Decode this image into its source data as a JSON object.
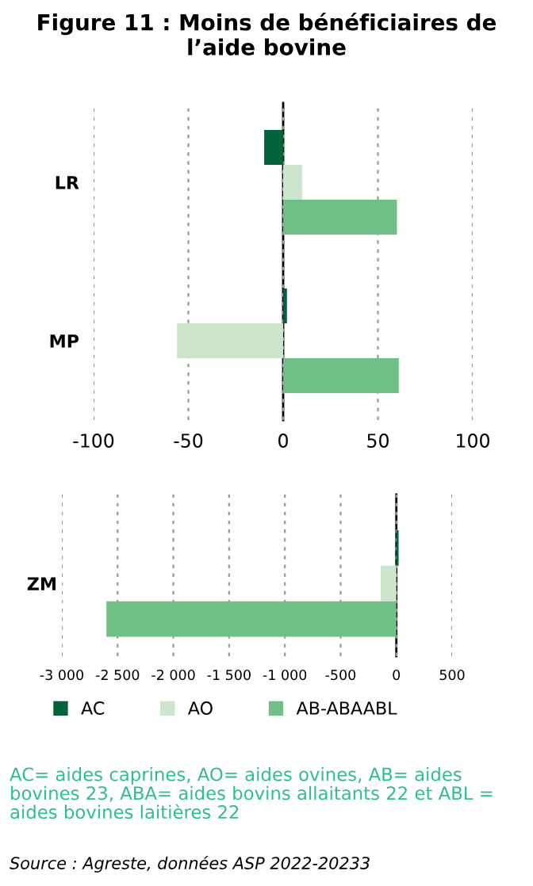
{
  "chart_data": [
    {
      "type": "bar",
      "orientation": "horizontal",
      "title": "Figure 11 : Moins de bénéficiaires de l’aide bovine",
      "categories": [
        "LR",
        "MP"
      ],
      "series": [
        {
          "color": "#00643a",
          "values": [
            -10,
            2
          ]
        },
        {
          "color": "#cde5cd",
          "values": [
            10,
            -56
          ]
        },
        {
          "color": "#70bf87",
          "values": [
            60,
            61
          ]
        }
      ],
      "xlim": [
        -100,
        100
      ],
      "xticks": [
        -100,
        -50,
        0,
        50,
        100
      ],
      "grid": "x",
      "legend": false
    },
    {
      "type": "bar",
      "orientation": "horizontal",
      "categories": [
        "ZM"
      ],
      "series": [
        {
          "name": "AC",
          "color": "#00643a",
          "values": [
            20
          ]
        },
        {
          "name": "AO",
          "color": "#cde5cd",
          "values": [
            -140
          ]
        },
        {
          "name": "AB-ABAABL",
          "color": "#70bf87",
          "values": [
            -2600
          ]
        }
      ],
      "xlim": [
        -3000,
        500
      ],
      "xticks": [
        {
          "value": -3000,
          "label": "-3 000"
        },
        {
          "value": -2500,
          "label": "-2 500"
        },
        {
          "value": -2000,
          "label": "-2 000"
        },
        {
          "value": -1500,
          "label": "-1 500"
        },
        {
          "value": -1000,
          "label": "-1 000"
        },
        -500,
        0,
        500
      ],
      "grid": "x",
      "legend": "bottom",
      "annotations": [
        "AC= aides caprines, AO= aides ovines, AB= aides bovines 23, ABA= aides bovins allaitants 22 et ABL = aides bovines laitières 22",
        "Source : Agreste, données ASP 2022-20233"
      ]
    }
  ]
}
